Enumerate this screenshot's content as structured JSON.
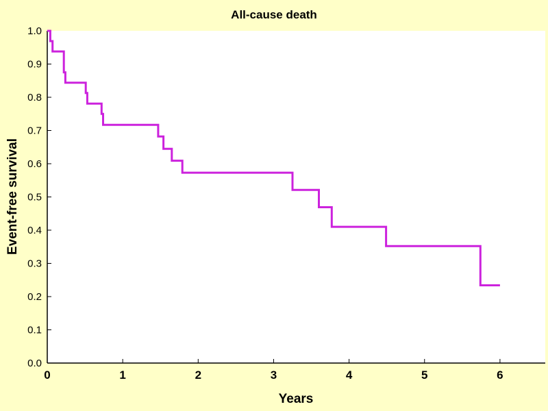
{
  "chart_data": {
    "type": "line",
    "step": true,
    "title": "All-cause death",
    "xlabel": "Years",
    "ylabel": "Event-free survival",
    "xlim": [
      0,
      6.6
    ],
    "ylim": [
      0,
      1.0
    ],
    "x_ticks": [
      0,
      1,
      2,
      3,
      4,
      5,
      6
    ],
    "x_tick_labels": [
      "0",
      "1",
      "2",
      "3",
      "4",
      "5",
      "6"
    ],
    "y_ticks": [
      0,
      0.1,
      0.2,
      0.3,
      0.4,
      0.5,
      0.6,
      0.7,
      0.8,
      0.9,
      1.0
    ],
    "y_tick_labels": [
      "0.0",
      "0.1",
      "0.2",
      "0.3",
      "0.4",
      "0.5",
      "0.6",
      "0.7",
      "0.8",
      "0.9",
      "1.0"
    ],
    "grid": false,
    "colors": {
      "background": "#FFFFC8",
      "plot_area": "#FFFFFF",
      "line": "#CC22DD",
      "axis": "#000000"
    },
    "series": [
      {
        "points": [
          [
            0.0,
            1.0
          ],
          [
            0.04,
            1.0
          ],
          [
            0.04,
            0.969
          ],
          [
            0.07,
            0.969
          ],
          [
            0.07,
            0.938
          ],
          [
            0.22,
            0.938
          ],
          [
            0.22,
            0.875
          ],
          [
            0.24,
            0.875
          ],
          [
            0.24,
            0.844
          ],
          [
            0.51,
            0.844
          ],
          [
            0.51,
            0.813
          ],
          [
            0.53,
            0.813
          ],
          [
            0.53,
            0.781
          ],
          [
            0.72,
            0.781
          ],
          [
            0.72,
            0.75
          ],
          [
            0.74,
            0.75
          ],
          [
            0.74,
            0.717
          ],
          [
            1.47,
            0.717
          ],
          [
            1.47,
            0.682
          ],
          [
            1.54,
            0.682
          ],
          [
            1.54,
            0.645
          ],
          [
            1.65,
            0.645
          ],
          [
            1.65,
            0.609
          ],
          [
            1.79,
            0.609
          ],
          [
            1.79,
            0.573
          ],
          [
            3.25,
            0.573
          ],
          [
            3.25,
            0.521
          ],
          [
            3.6,
            0.521
          ],
          [
            3.6,
            0.469
          ],
          [
            3.77,
            0.469
          ],
          [
            3.77,
            0.41
          ],
          [
            4.49,
            0.41
          ],
          [
            4.49,
            0.352
          ],
          [
            5.74,
            0.352
          ],
          [
            5.74,
            0.234
          ],
          [
            6.0,
            0.234
          ]
        ]
      }
    ]
  }
}
